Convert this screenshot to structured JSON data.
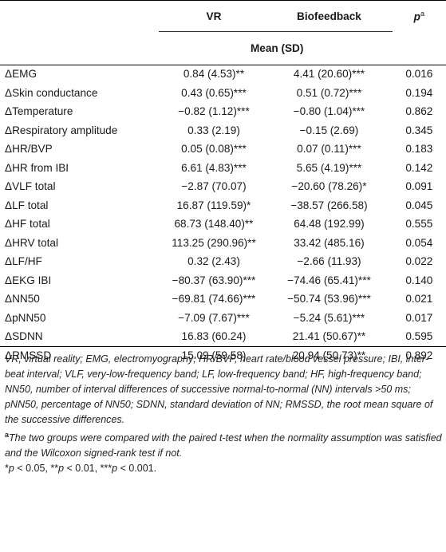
{
  "table": {
    "header": {
      "col_vr": "VR",
      "col_bio": "Biofeedback",
      "col_p_main": "p",
      "col_p_sup": "a",
      "subheader": "Mean (SD)"
    },
    "rows": [
      {
        "label": "ΔEMG",
        "vr": "0.84 (4.53)**",
        "bio": "4.41 (20.60)***",
        "p": "0.016"
      },
      {
        "label": "ΔSkin conductance",
        "vr": "0.43 (0.65)***",
        "bio": "0.51 (0.72)***",
        "p": "0.194"
      },
      {
        "label": "ΔTemperature",
        "vr": "−0.82 (1.12)***",
        "bio": "−0.80 (1.04)***",
        "p": "0.862"
      },
      {
        "label": "ΔRespiratory amplitude",
        "vr": "0.33 (2.19)",
        "bio": "−0.15 (2.69)",
        "p": "0.345"
      },
      {
        "label": "ΔHR/BVP",
        "vr": "0.05 (0.08)***",
        "bio": "0.07 (0.11)***",
        "p": "0.183"
      },
      {
        "label": "ΔHR from IBI",
        "vr": "6.61 (4.83)***",
        "bio": "5.65 (4.19)***",
        "p": "0.142"
      },
      {
        "label": "ΔVLF total",
        "vr": "−2.87 (70.07)",
        "bio": "−20.60 (78.26)*",
        "p": "0.091"
      },
      {
        "label": "ΔLF total",
        "vr": "16.87 (119.59)*",
        "bio": "−38.57 (266.58)",
        "p": "0.045"
      },
      {
        "label": "ΔHF total",
        "vr": "68.73 (148.40)**",
        "bio": "64.48 (192.99)",
        "p": "0.555"
      },
      {
        "label": "ΔHRV total",
        "vr": "113.25 (290.96)**",
        "bio": "33.42 (485.16)",
        "p": "0.054"
      },
      {
        "label": "ΔLF/HF",
        "vr": "0.32 (2.43)",
        "bio": "−2.66 (11.93)",
        "p": "0.022"
      },
      {
        "label": "ΔEKG IBI",
        "vr": "−80.37 (63.90)***",
        "bio": "−74.46 (65.41)***",
        "p": "0.140"
      },
      {
        "label": "ΔNN50",
        "vr": "−69.81 (74.66)***",
        "bio": "−50.74 (53.96)***",
        "p": "0.021"
      },
      {
        "label": "ΔpNN50",
        "vr": "−7.09 (7.67)***",
        "bio": "−5.24 (5.61)***",
        "p": "0.017"
      },
      {
        "label": "ΔSDNN",
        "vr": "16.83 (60.24)",
        "bio": "21.41 (50.67)**",
        "p": "0.595"
      },
      {
        "label": "ΔRMSSD",
        "vr": "15.09 (59.58)",
        "bio": "20.94 (50.73)**",
        "p": "0.892"
      }
    ]
  },
  "footnotes": {
    "abbreviations": "VR, virtual reality; EMG, electromyography; HR/BVP, heart rate/blood vessel pressure; IBI, inter-beat interval; VLF, very-low-frequency band; LF, low-frequency band; HF, high-frequency band; NN50, number of interval differences of successive normal-to-normal (NN) intervals >50 ms; pNN50, percentage of NN50; SDNN, standard deviation of NN; RMSSD, the root mean square of the successive differences.",
    "note_a_marker": "a",
    "note_a": "The two groups were compared with the paired t-test when the normality assumption was satisfied and the Wilcoxon signed-rank test if not.",
    "significance": "*p < 0.05, **p < 0.01, ***p < 0.001."
  }
}
